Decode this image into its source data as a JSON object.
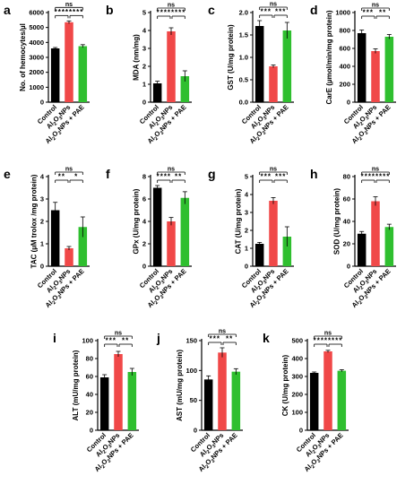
{
  "colors": {
    "control": "#000000",
    "np": "#f04848",
    "pae": "#2fbf2f",
    "axis": "#000000"
  },
  "chart_data": [
    {
      "letter": "a",
      "type": "bar",
      "ylabel": "No. of hemocytes/µl",
      "categories": [
        "Control",
        "Al2O3NPs",
        "Al2O3NPs + PAE"
      ],
      "values": [
        3600,
        5350,
        3750
      ],
      "errors": [
        60,
        90,
        100
      ],
      "ylim": [
        0,
        6000
      ],
      "yticks": [
        0,
        1000,
        2000,
        3000,
        4000,
        5000,
        6000
      ],
      "ytick_labels": [
        "0",
        "1000",
        "2000",
        "3000",
        "4000",
        "5000",
        "6000"
      ],
      "sig": {
        "c_np": "****",
        "np_pae": "****",
        "c_pae": "ns"
      }
    },
    {
      "letter": "b",
      "type": "bar",
      "ylabel": "MDA (nm/mg)",
      "categories": [
        "Control",
        "Al2O3NPs",
        "Al2O3NPs + PAE"
      ],
      "values": [
        1.05,
        3.95,
        1.45
      ],
      "errors": [
        0.12,
        0.2,
        0.3
      ],
      "ylim": [
        0,
        5
      ],
      "yticks": [
        0,
        1,
        2,
        3,
        4,
        5
      ],
      "ytick_labels": [
        "0",
        "1",
        "2",
        "3",
        "4",
        "5"
      ],
      "sig": {
        "c_np": "****",
        "np_pae": "****",
        "c_pae": "ns"
      }
    },
    {
      "letter": "c",
      "type": "bar",
      "ylabel": "GST (U/mg protein)",
      "categories": [
        "Control",
        "Al2O3NPs",
        "Al2O3NPs + PAE"
      ],
      "values": [
        1.7,
        0.8,
        1.6
      ],
      "errors": [
        0.12,
        0.03,
        0.18
      ],
      "ylim": [
        0,
        2.0
      ],
      "yticks": [
        0,
        0.5,
        1.0,
        1.5,
        2.0
      ],
      "ytick_labels": [
        "0.0",
        "0.5",
        "1.0",
        "1.5",
        "2.0"
      ],
      "sig": {
        "c_np": "***",
        "np_pae": "***",
        "c_pae": "ns"
      }
    },
    {
      "letter": "d",
      "type": "bar",
      "ylabel": "CarE (µmol/min/mg protein)",
      "categories": [
        "Control",
        "Al2O3NPs",
        "Al2O3NPs + PAE"
      ],
      "values": [
        770,
        570,
        730
      ],
      "errors": [
        35,
        25,
        25
      ],
      "ylim": [
        0,
        1000
      ],
      "yticks": [
        0,
        200,
        400,
        600,
        800,
        1000
      ],
      "ytick_labels": [
        "0",
        "200",
        "400",
        "600",
        "800",
        "1000"
      ],
      "sig": {
        "c_np": "***",
        "np_pae": "**",
        "c_pae": "ns"
      }
    },
    {
      "letter": "e",
      "type": "bar",
      "ylabel": "TAC (µM trolox /mg protein)",
      "categories": [
        "Control",
        "Al2O3NPs",
        "Al2O3NPs + PAE"
      ],
      "values": [
        2.5,
        0.8,
        1.75
      ],
      "errors": [
        0.35,
        0.08,
        0.45
      ],
      "ylim": [
        0,
        4
      ],
      "yticks": [
        0,
        1,
        2,
        3,
        4
      ],
      "ytick_labels": [
        "0",
        "1",
        "2",
        "3",
        "4"
      ],
      "sig": {
        "c_np": "**",
        "np_pae": "*",
        "c_pae": "ns"
      }
    },
    {
      "letter": "f",
      "type": "bar",
      "ylabel": "GPx (U/mg protein)",
      "categories": [
        "Control",
        "Al2O3NPs",
        "Al2O3NPs + PAE"
      ],
      "values": [
        7.0,
        4.0,
        6.1
      ],
      "errors": [
        0.2,
        0.35,
        0.55
      ],
      "ylim": [
        0,
        8
      ],
      "yticks": [
        0,
        2,
        4,
        6,
        8
      ],
      "ytick_labels": [
        "0",
        "2",
        "4",
        "6",
        "8"
      ],
      "sig": {
        "c_np": "****",
        "np_pae": "**",
        "c_pae": "ns"
      }
    },
    {
      "letter": "g",
      "type": "bar",
      "ylabel": "CAT (U/mg protein)",
      "categories": [
        "Control",
        "Al2O3NPs",
        "Al2O3NPs + PAE"
      ],
      "values": [
        1.25,
        3.65,
        1.65
      ],
      "errors": [
        0.08,
        0.18,
        0.55
      ],
      "ylim": [
        0,
        5
      ],
      "yticks": [
        0,
        1,
        2,
        3,
        4,
        5
      ],
      "ytick_labels": [
        "0",
        "1",
        "2",
        "3",
        "4",
        "5"
      ],
      "sig": {
        "c_np": "***",
        "np_pae": "***",
        "c_pae": "ns"
      }
    },
    {
      "letter": "h",
      "type": "bar",
      "ylabel": "SOD (U/mg protein)",
      "categories": [
        "Control",
        "Al2O3NPs",
        "Al2O3NPs + PAE"
      ],
      "values": [
        29,
        58,
        35
      ],
      "errors": [
        2,
        4,
        2.5
      ],
      "ylim": [
        0,
        80
      ],
      "yticks": [
        0,
        20,
        40,
        60,
        80
      ],
      "ytick_labels": [
        "0",
        "20",
        "40",
        "60",
        "80"
      ],
      "sig": {
        "c_np": "****",
        "np_pae": "****",
        "c_pae": "ns"
      }
    },
    {
      "letter": "i",
      "type": "bar",
      "ylabel": "ALT (mU/mg protein)",
      "categories": [
        "Control",
        "Al2O3NPs",
        "Al2O3NPs + PAE"
      ],
      "values": [
        59,
        85,
        65
      ],
      "errors": [
        3,
        3,
        4
      ],
      "ylim": [
        0,
        100
      ],
      "yticks": [
        0,
        20,
        40,
        60,
        80,
        100
      ],
      "ytick_labels": [
        "0",
        "20",
        "40",
        "60",
        "80",
        "100"
      ],
      "sig": {
        "c_np": "***",
        "np_pae": "**",
        "c_pae": "ns"
      }
    },
    {
      "letter": "j",
      "type": "bar",
      "ylabel": "AST (mU/mg protein)",
      "categories": [
        "Control",
        "Al2O3NPs",
        "Al2O3NPs + PAE"
      ],
      "values": [
        85,
        130,
        98
      ],
      "errors": [
        6,
        8,
        5
      ],
      "ylim": [
        0,
        150
      ],
      "yticks": [
        0,
        50,
        100,
        150
      ],
      "ytick_labels": [
        "0",
        "50",
        "100",
        "150"
      ],
      "sig": {
        "c_np": "***",
        "np_pae": "**",
        "c_pae": "ns"
      }
    },
    {
      "letter": "k",
      "type": "bar",
      "ylabel": "CK (U/mg protein)",
      "categories": [
        "Control",
        "Al2O3NPs",
        "Al2O3NPs + PAE"
      ],
      "values": [
        320,
        440,
        332
      ],
      "errors": [
        5,
        6,
        6
      ],
      "ylim": [
        0,
        500
      ],
      "yticks": [
        0,
        100,
        200,
        300,
        400,
        500
      ],
      "ytick_labels": [
        "0",
        "100",
        "200",
        "300",
        "400",
        "500"
      ],
      "sig": {
        "c_np": "****",
        "np_pae": "****",
        "c_pae": "ns"
      }
    }
  ]
}
